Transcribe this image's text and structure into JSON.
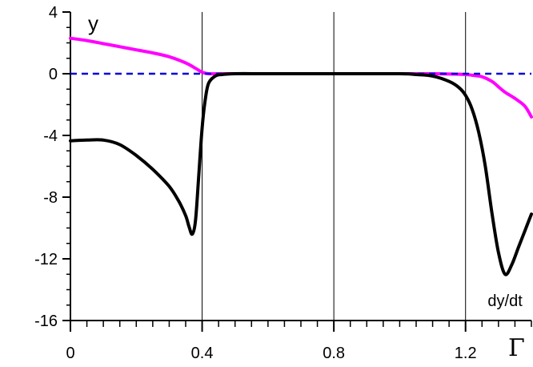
{
  "chart_data": {
    "type": "line",
    "title": "",
    "xlabel": "Γ",
    "ylabel": "y",
    "xlim": [
      0,
      1.4
    ],
    "ylim": [
      -16,
      4
    ],
    "x_ticks": [
      0,
      0.4,
      0.8,
      1.2
    ],
    "x_tick_labels": [
      "0",
      "0.4",
      "0.8",
      "1.2"
    ],
    "y_ticks": [
      4,
      0,
      -4,
      -8,
      -12,
      -16
    ],
    "y_tick_labels": [
      "4",
      "0",
      "-4",
      "-8",
      "-12",
      "-16"
    ],
    "grid": {
      "vertical_at": [
        0.4,
        0.8,
        1.2
      ]
    },
    "annotations": [
      {
        "text": "dy/dt",
        "x": 1.32,
        "y": -13.6
      }
    ],
    "series": [
      {
        "color": "#ff00ff",
        "style": "solid",
        "x": [
          0,
          0.05,
          0.1,
          0.15,
          0.2,
          0.25,
          0.3,
          0.35,
          0.38,
          0.4,
          0.42,
          0.45,
          0.5,
          0.6,
          0.7,
          0.8,
          0.9,
          1.0,
          1.1,
          1.15,
          1.2,
          1.22,
          1.25,
          1.28,
          1.3,
          1.32,
          1.35,
          1.38,
          1.4
        ],
        "y": [
          2.3,
          2.15,
          1.95,
          1.75,
          1.55,
          1.35,
          1.1,
          0.7,
          0.35,
          0.1,
          0.0,
          0.0,
          0.0,
          0.0,
          0.0,
          0.0,
          0.0,
          0.0,
          0.0,
          -0.02,
          -0.05,
          -0.1,
          -0.2,
          -0.5,
          -0.85,
          -1.2,
          -1.6,
          -2.1,
          -2.8
        ]
      },
      {
        "color": "#000000",
        "style": "solid",
        "x": [
          0,
          0.05,
          0.1,
          0.15,
          0.2,
          0.25,
          0.3,
          0.33,
          0.35,
          0.36,
          0.37,
          0.38,
          0.39,
          0.4,
          0.41,
          0.42,
          0.44,
          0.46,
          0.5,
          0.6,
          0.8,
          1.0,
          1.05,
          1.1,
          1.15,
          1.18,
          1.2,
          1.22,
          1.24,
          1.26,
          1.28,
          1.3,
          1.32,
          1.34,
          1.36,
          1.38,
          1.4
        ],
        "y": [
          -4.35,
          -4.3,
          -4.3,
          -4.6,
          -5.3,
          -6.2,
          -7.3,
          -8.3,
          -9.2,
          -9.9,
          -10.4,
          -9.5,
          -6.5,
          -3.5,
          -1.6,
          -0.6,
          -0.15,
          -0.05,
          0.0,
          0.0,
          0.0,
          0.0,
          -0.05,
          -0.15,
          -0.5,
          -0.9,
          -1.4,
          -2.3,
          -3.8,
          -6.0,
          -9.0,
          -11.6,
          -13.0,
          -12.4,
          -11.3,
          -10.2,
          -9.1
        ]
      },
      {
        "color": "#0000dd",
        "style": "dashed",
        "x": [
          0,
          1.4
        ],
        "y": [
          0,
          0
        ]
      }
    ]
  }
}
